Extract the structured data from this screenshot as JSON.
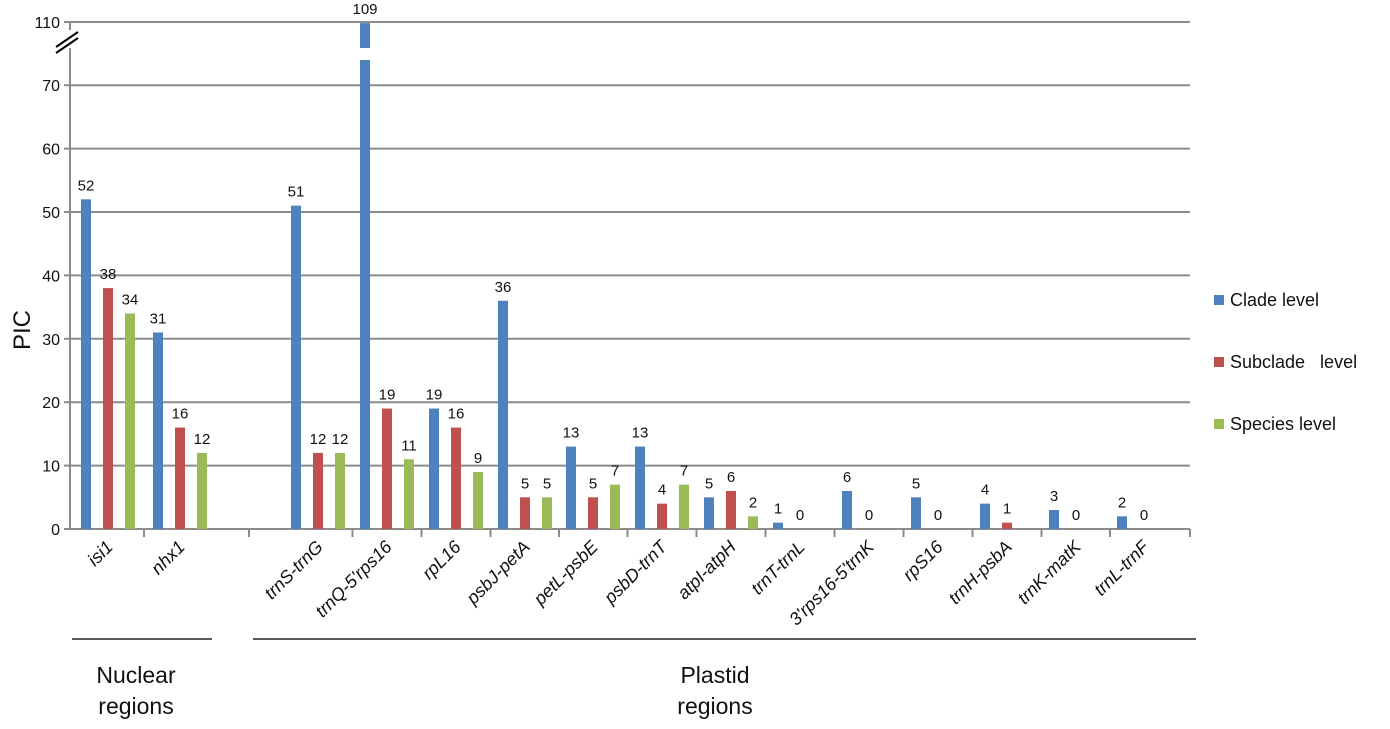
{
  "chart_data": {
    "type": "bar",
    "ylabel": "PIC",
    "xlabel": "",
    "title": "",
    "y_axis": {
      "ticks": [
        0,
        10,
        20,
        30,
        40,
        50,
        60,
        70,
        110
      ],
      "broken_axis": true,
      "break_from": 75,
      "break_to": 108
    },
    "categories": [
      "isi1",
      "nhx1",
      "trnS-trnG",
      "trnQ-5'rps16",
      "rpL16",
      "psbJ-petA",
      "petL-psbE",
      "psbD-trnT",
      "atpI-atpH",
      "trnT-trnL",
      "3'rps16-5'trnK",
      "rpS16",
      "trnH-psbA",
      "trnK-matK",
      "trnL-trnF"
    ],
    "series": [
      {
        "name": "Clade level",
        "color": "#4f81bd",
        "values": [
          52,
          31,
          51,
          109,
          19,
          36,
          13,
          13,
          5,
          1,
          6,
          5,
          4,
          3,
          2
        ]
      },
      {
        "name": "Subclade   level",
        "color": "#c0504d",
        "values": [
          38,
          16,
          12,
          19,
          16,
          5,
          5,
          4,
          6,
          0,
          0,
          0,
          1,
          0,
          0
        ]
      },
      {
        "name": "Species level",
        "color": "#9bbb59",
        "values": [
          34,
          12,
          12,
          11,
          9,
          5,
          7,
          7,
          2,
          null,
          null,
          null,
          null,
          null,
          null
        ]
      }
    ],
    "groups": [
      {
        "label_line1": "Nuclear",
        "label_line2": "regions",
        "categories": [
          "isi1",
          "nhx1"
        ]
      },
      {
        "label_line1": "Plastid",
        "label_line2": "regions",
        "categories": [
          "trnS-trnG",
          "trnQ-5'rps16",
          "rpL16",
          "psbJ-petA",
          "petL-psbE",
          "psbD-trnT",
          "atpI-atpH",
          "trnT-trnL",
          "3'rps16-5'trnK",
          "rpS16",
          "trnH-psbA",
          "trnK-matK",
          "trnL-trnF"
        ]
      }
    ],
    "grid": true,
    "legend_position": "right"
  }
}
